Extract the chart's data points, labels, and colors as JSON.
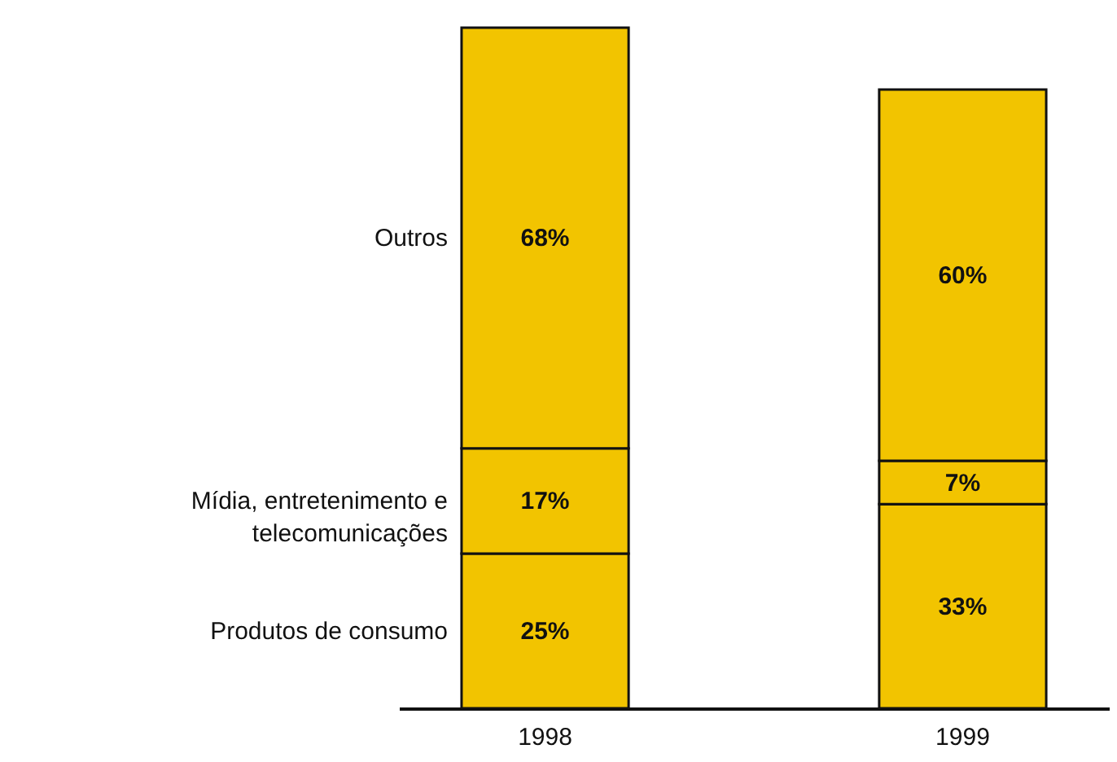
{
  "chart_data": {
    "type": "bar",
    "stacked": true,
    "categories": [
      "1998",
      "1999"
    ],
    "series": [
      {
        "name": "Produtos de consumo",
        "color": "#f2c400",
        "values": [
          25,
          33
        ],
        "value_labels": [
          "25%",
          "33%"
        ]
      },
      {
        "name": "Mídia, entretenimento e telecomunicações",
        "color": "#f2c400",
        "values": [
          17,
          7
        ],
        "value_labels": [
          "17%",
          "7%"
        ]
      },
      {
        "name": "Outros",
        "color": "#f2c400",
        "values": [
          68,
          60
        ],
        "value_labels": [
          "68%",
          "60%"
        ]
      }
    ]
  }
}
